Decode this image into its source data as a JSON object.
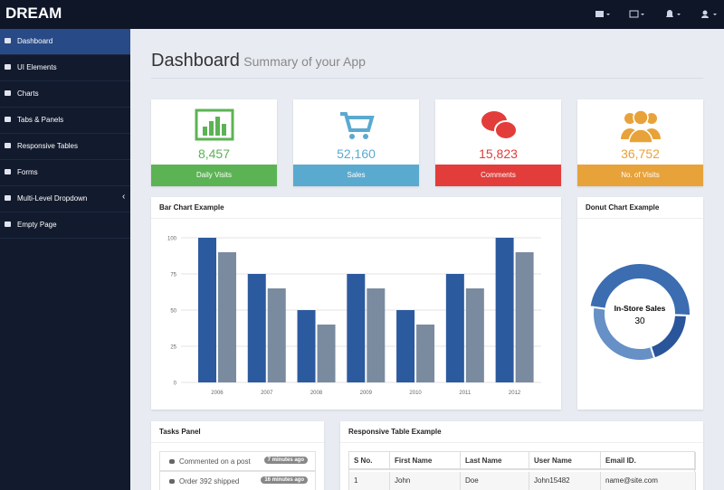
{
  "brand": "DREAM",
  "sidebar": [
    "Dashboard",
    "UI Elements",
    "Charts",
    "Tabs & Panels",
    "Responsive Tables",
    "Forms",
    "Multi-Level Dropdown",
    "Empty Page"
  ],
  "header": {
    "title": "Dashboard",
    "subtitle": "Summary of your App"
  },
  "stats": [
    {
      "value": "8,457",
      "label": "Daily Visits",
      "color": "#5cb354"
    },
    {
      "value": "52,160",
      "label": "Sales",
      "color": "#5aaacf"
    },
    {
      "value": "15,823",
      "label": "Comments",
      "color": "#e23d3b"
    },
    {
      "value": "36,752",
      "label": "No. of Visits",
      "color": "#e8a23a"
    }
  ],
  "chart_data": [
    {
      "type": "bar",
      "title": "Bar Chart Example",
      "categories": [
        "2006",
        "2007",
        "2008",
        "2009",
        "2010",
        "2011",
        "2012"
      ],
      "series": [
        {
          "color": "#2c5a9f",
          "values": [
            100,
            75,
            50,
            75,
            50,
            75,
            100
          ]
        },
        {
          "color": "#7a8ba0",
          "values": [
            90,
            65,
            40,
            65,
            40,
            65,
            90
          ]
        }
      ],
      "ylim": [
        0,
        100
      ],
      "yticks": [
        0,
        25,
        50,
        75,
        100
      ],
      "grid": true
    },
    {
      "type": "pie",
      "title": "Donut Chart Example",
      "hole": true,
      "values": [
        30,
        12,
        20
      ],
      "colors": [
        "#3b6db0",
        "#2a559b",
        "#6690c6"
      ],
      "center_label": "In-Store Sales"
    }
  ],
  "tasks": {
    "title": "Tasks Panel",
    "items": [
      {
        "text": "Commented on a post",
        "time": "7 minutes ago"
      },
      {
        "text": "Order 392 shipped",
        "time": "16 minutes ago"
      }
    ]
  },
  "table": {
    "title": "Responsive Table Example",
    "headers": [
      "S No.",
      "First Name",
      "Last Name",
      "User Name",
      "Email ID."
    ],
    "rows": [
      [
        "1",
        "John",
        "Doe",
        "John15482",
        "name@site.com"
      ]
    ]
  }
}
